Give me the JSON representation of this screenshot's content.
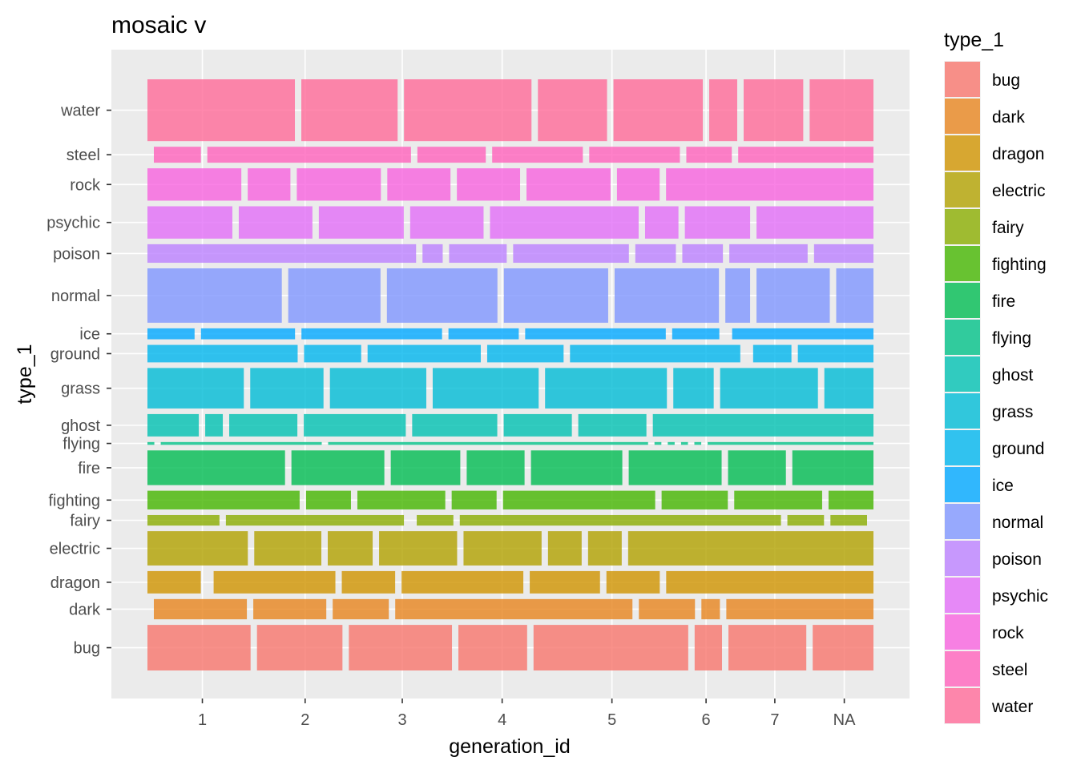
{
  "chart_data": {
    "type": "mosaic",
    "title": "mosaic v",
    "xlabel": "generation_id",
    "ylabel": "type_1",
    "categories": [
      "1",
      "2",
      "3",
      "4",
      "5",
      "6",
      "7",
      "NA"
    ],
    "category_shares": [
      0.1398,
      0.1055,
      0.1255,
      0.1124,
      0.1508,
      0.0725,
      0.0862,
      0.0743
    ],
    "series": [
      {
        "name": "bug",
        "color": "#F8766D",
        "share": 0.0662,
        "values": [
          0.1424,
          0.118,
          0.1424,
          0.0949,
          0.2136,
          0.0378,
          0.1075,
          0.0839
        ]
      },
      {
        "name": "dark",
        "color": "#E7851E",
        "share": 0.0294,
        "values": [
          0.0,
          0.1296,
          0.1017,
          0.0782,
          0.3305,
          0.0782,
          0.0258,
          0.205
        ]
      },
      {
        "name": "dragon",
        "color": "#D09400",
        "share": 0.0325,
        "values": [
          0.0745,
          0.0,
          0.17,
          0.0745,
          0.17,
          0.0981,
          0.0745,
          0.2894
        ]
      },
      {
        "name": "electric",
        "color": "#B2A100",
        "share": 0.0498,
        "values": [
          0.1393,
          0.0931,
          0.0623,
          0.1083,
          0.1083,
          0.0467,
          0.0467,
          0.3404
        ]
      },
      {
        "name": "fairy",
        "color": "#89AC00",
        "share": 0.0153,
        "values": [
          0.1001,
          0.2474,
          0.0,
          0.0509,
          0.4463,
          0.0509,
          0.0509,
          0.0
        ]
      },
      {
        "name": "fighting",
        "color": "#45B500",
        "share": 0.0272,
        "values": [
          0.2121,
          0.0626,
          0.1225,
          0.0626,
          0.2121,
          0.0923,
          0.1225,
          0.0626
        ]
      },
      {
        "name": "fire",
        "color": "#00BC51",
        "share": 0.0504,
        "values": [
          0.1919,
          0.1296,
          0.097,
          0.0807,
          0.1274,
          0.1296,
          0.0807,
          0.1132
        ]
      },
      {
        "name": "flying",
        "color": "#00C087",
        "share": 0.004,
        "values": [
          0.01,
          0.234,
          0.465,
          0.01,
          0.01,
          0.01,
          0.01,
          0.241
        ]
      },
      {
        "name": "ghost",
        "color": "#00C0B2",
        "share": 0.0325,
        "values": [
          0.0712,
          0.0244,
          0.0945,
          0.1414,
          0.118,
          0.0945,
          0.0945,
          0.3059
        ]
      },
      {
        "name": "grass",
        "color": "#00BCD6",
        "share": 0.0588,
        "values": [
          0.1336,
          0.1016,
          0.1336,
          0.1469,
          0.1689,
          0.056,
          0.1356,
          0.0681
        ]
      },
      {
        "name": "ground",
        "color": "#00B5EE",
        "share": 0.0254,
        "values": [
          0.2078,
          0.079,
          0.1566,
          0.1057,
          0.2356,
          0.0,
          0.053,
          0.1046
        ]
      },
      {
        "name": "ice",
        "color": "#00A7FF",
        "share": 0.0159,
        "values": [
          0.0651,
          0.1299,
          0.1942,
          0.0971,
          0.1942,
          0.0651,
          0.0,
          0.1952
        ]
      },
      {
        "name": "normal",
        "color": "#7F96FF",
        "share": 0.079,
        "values": [
          0.1861,
          0.1278,
          0.1531,
          0.1445,
          0.1445,
          0.0343,
          0.1015,
          0.0516
        ]
      },
      {
        "name": "poison",
        "color": "#BC81FF",
        "share": 0.0269,
        "values": [
          0.3739,
          0.0281,
          0.0802,
          0.1611,
          0.0565,
          0.0565,
          0.109,
          0.0827
        ]
      },
      {
        "name": "psychic",
        "color": "#E26EF7",
        "share": 0.047,
        "values": [
          0.1175,
          0.1019,
          0.1175,
          0.1016,
          0.2057,
          0.0462,
          0.0903,
          0.1618
        ]
      },
      {
        "name": "rock",
        "color": "#F863DF",
        "share": 0.047,
        "values": [
          0.13,
          0.0591,
          0.1164,
          0.0875,
          0.0875,
          0.1164,
          0.0591,
          0.2872
        ]
      },
      {
        "name": "steel",
        "color": "#FF62BC",
        "share": 0.0232,
        "values": [
          0.0,
          0.0653,
          0.2826,
          0.0949,
          0.1258,
          0.1258,
          0.0631,
          0.1877
        ]
      },
      {
        "name": "water",
        "color": "#FF6A98",
        "share": 0.0898,
        "values": [
          0.2073,
          0.1354,
          0.1792,
          0.0972,
          0.1256,
          0.0394,
          0.0838,
          0.0897
        ]
      }
    ],
    "ytick_labels": [
      "bug",
      "dark",
      "dragon",
      "electric",
      "fairy",
      "fighting",
      "fire",
      "flying",
      "ghost",
      "grass",
      "ground",
      "ice",
      "normal",
      "poison",
      "psychic",
      "rock",
      "steel",
      "water"
    ],
    "xtick_labels": [
      "1",
      "2",
      "3",
      "4",
      "5",
      "6",
      "7",
      "NA"
    ],
    "legend": {
      "title": "type_1",
      "position": "right"
    },
    "panel_background": "#EBEBEB",
    "grid_color": "#FFFFFF",
    "grid": true,
    "fill_opacity": 0.8
  }
}
